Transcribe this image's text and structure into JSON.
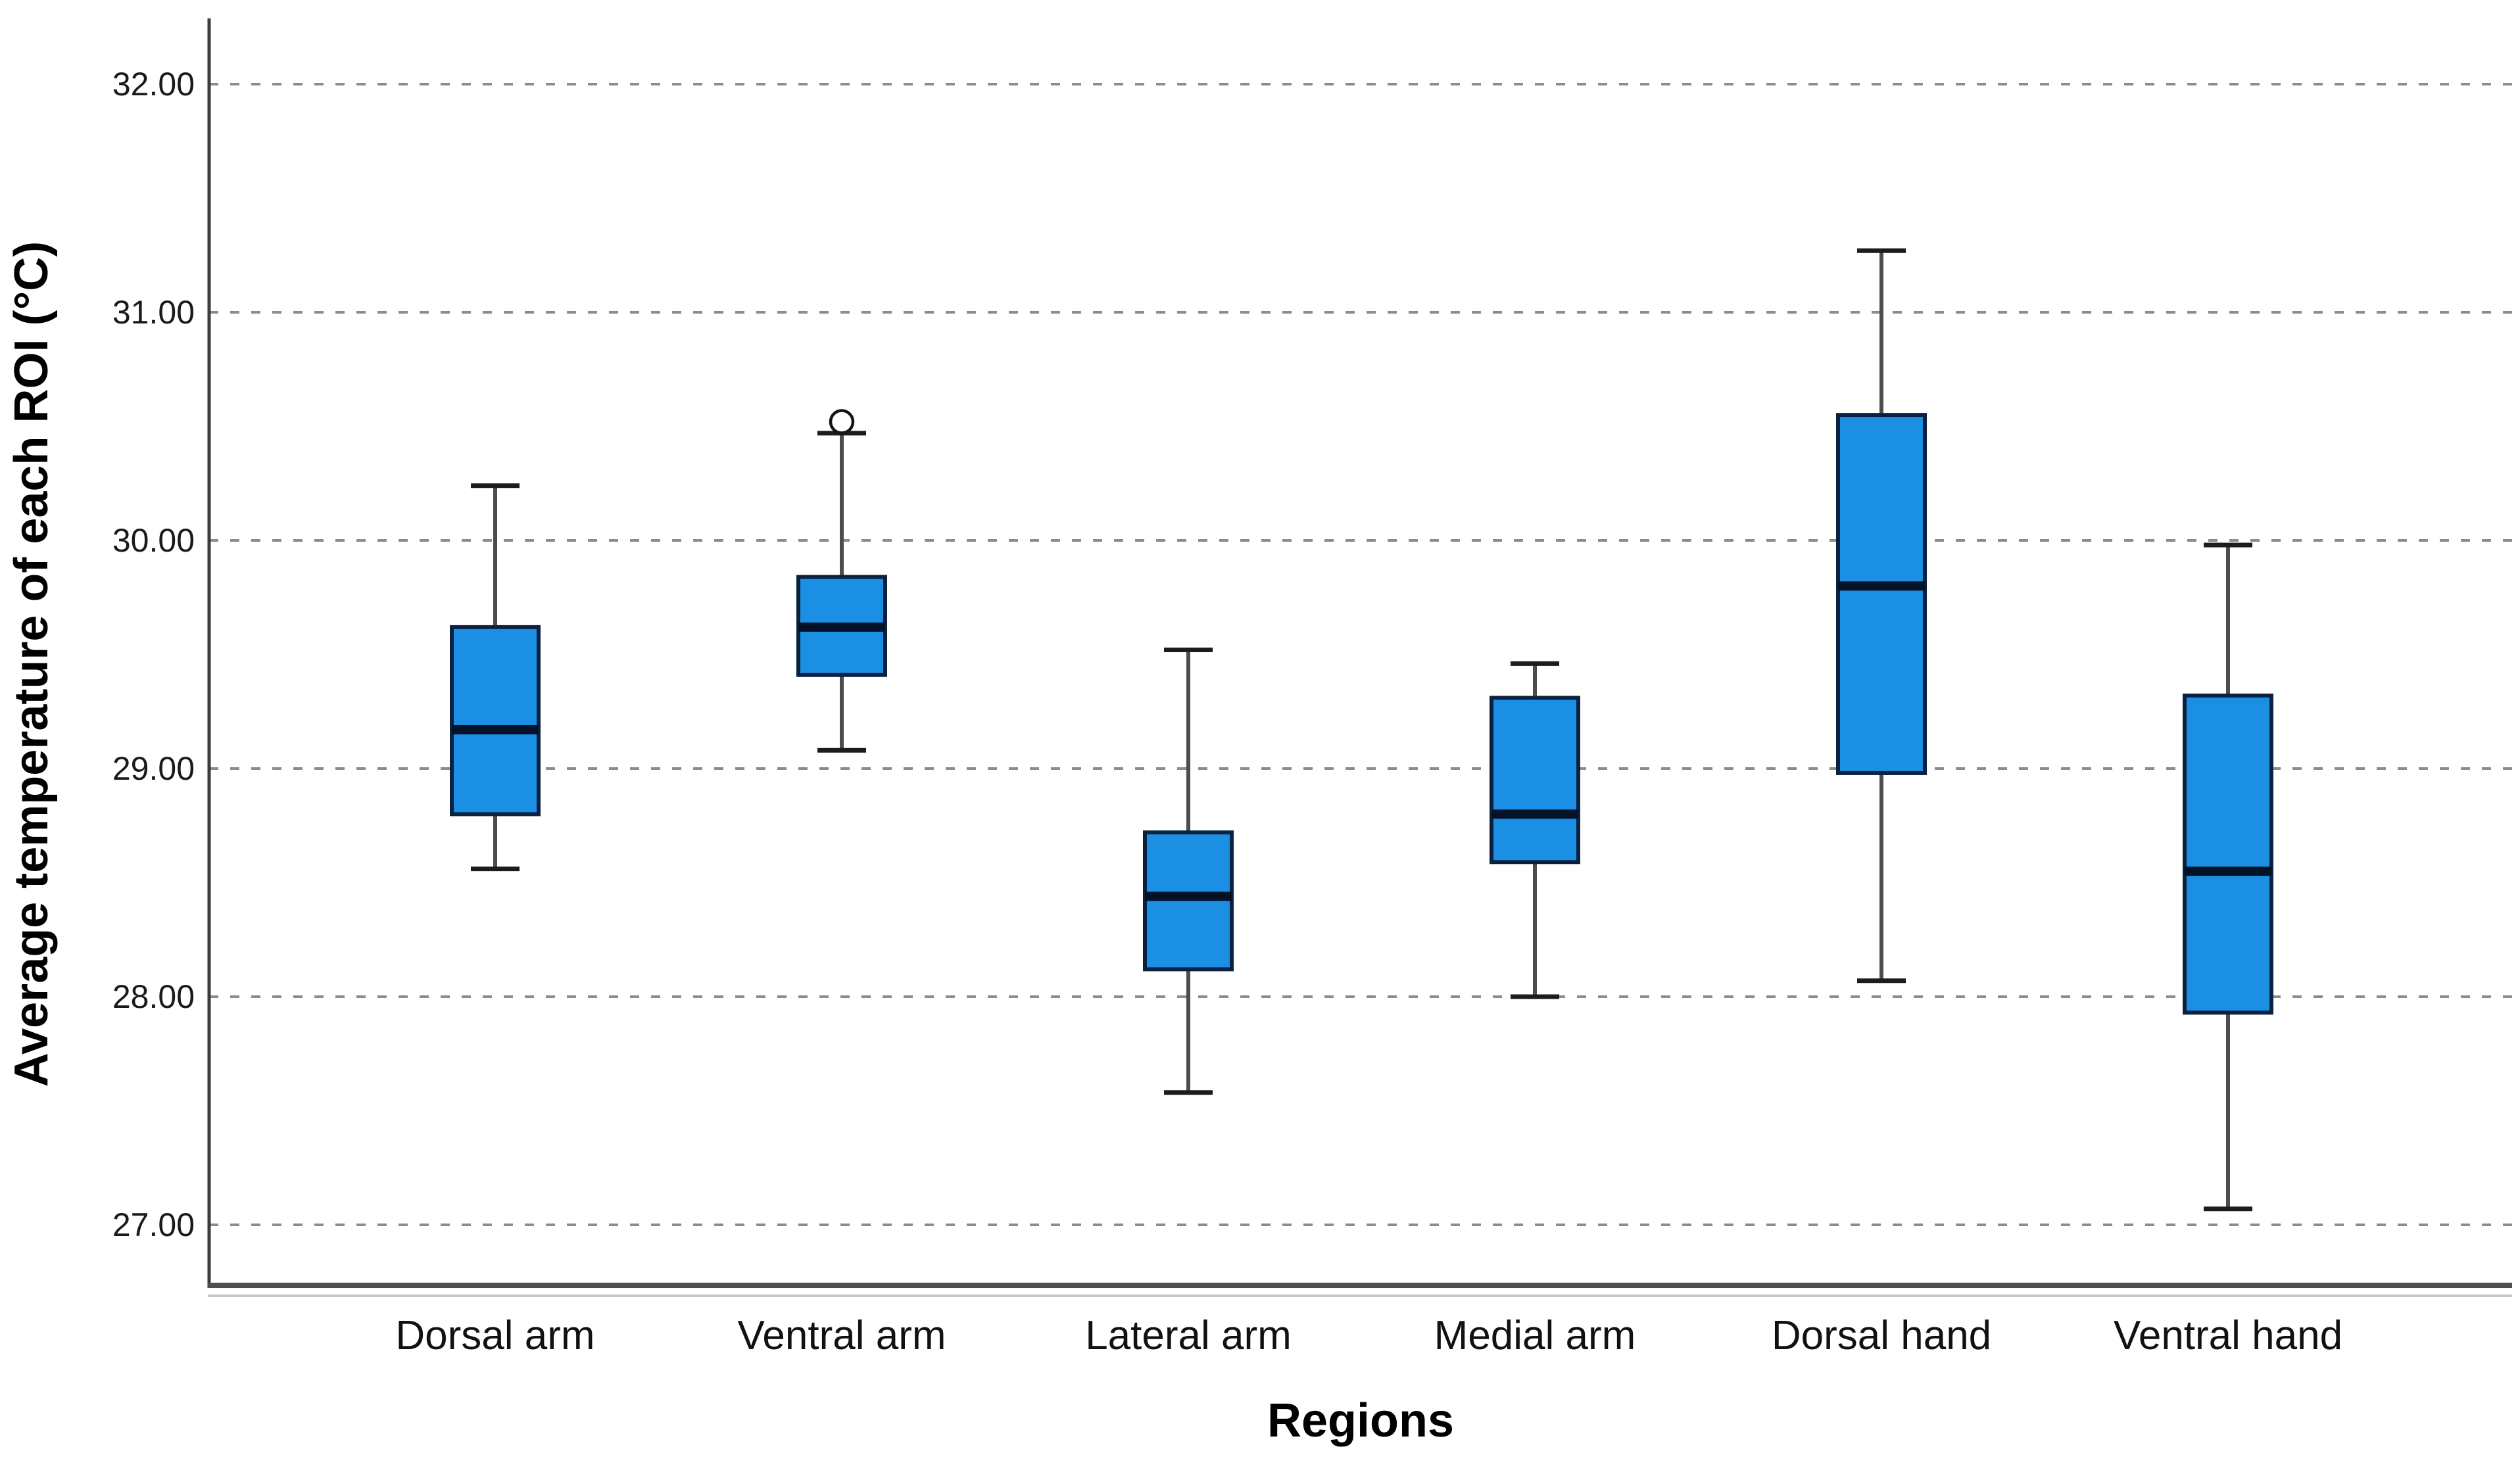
{
  "chart_data": {
    "type": "boxplot",
    "title": "",
    "xlabel": "Regions",
    "ylabel": "Average temperature of each ROI (°C)",
    "ylim": [
      26.75,
      32.3
    ],
    "grid": "horizontal-dashed",
    "legend": "none",
    "y_ticks": [
      {
        "label": "32.00",
        "value": 32.0
      },
      {
        "label": "31.00",
        "value": 31.0
      },
      {
        "label": "30.00",
        "value": 30.0
      },
      {
        "label": "29.00",
        "value": 29.0
      },
      {
        "label": "28.00",
        "value": 28.0
      },
      {
        "label": "27.00",
        "value": 27.0
      }
    ],
    "categories": [
      "Dorsal arm",
      "Ventral arm",
      "Lateral arm",
      "Medial arm",
      "Dorsal hand",
      "Ventral hand"
    ],
    "series": [
      {
        "name": "Dorsal arm",
        "whisker_low": 28.56,
        "q1": 28.8,
        "median": 29.17,
        "q3": 29.62,
        "whisker_high": 30.24,
        "outliers": []
      },
      {
        "name": "Ventral arm",
        "whisker_low": 29.08,
        "q1": 29.41,
        "median": 29.62,
        "q3": 29.84,
        "whisker_high": 30.47,
        "outliers": [
          30.52
        ]
      },
      {
        "name": "Lateral arm",
        "whisker_low": 27.58,
        "q1": 28.12,
        "median": 28.44,
        "q3": 28.72,
        "whisker_high": 29.52,
        "outliers": []
      },
      {
        "name": "Medial arm",
        "whisker_low": 28.0,
        "q1": 28.59,
        "median": 28.8,
        "q3": 29.31,
        "whisker_high": 29.46,
        "outliers": []
      },
      {
        "name": "Dorsal hand",
        "whisker_low": 28.07,
        "q1": 28.98,
        "median": 29.8,
        "q3": 30.55,
        "whisker_high": 31.27,
        "outliers": []
      },
      {
        "name": "Ventral hand",
        "whisker_low": 27.07,
        "q1": 27.93,
        "median": 28.55,
        "q3": 29.32,
        "whisker_high": 29.98,
        "outliers": []
      }
    ]
  },
  "style": {
    "box_fill": "#1B8FE4",
    "box_border": "#0A2140",
    "median_color": "#041228",
    "whisker_line_color": "#4D4D4D",
    "whisker_cap_color": "#1C1C1C",
    "outlier_stroke": "#141414",
    "outlier_fill": "#FFFFFF",
    "grid_color": "#8C8C8C",
    "y_axis_color": "#3C3C3C",
    "x_axis_color": "#4F4F4F",
    "x_axis_shadow": "#C8C8C8",
    "background": "#FFFFFF"
  }
}
